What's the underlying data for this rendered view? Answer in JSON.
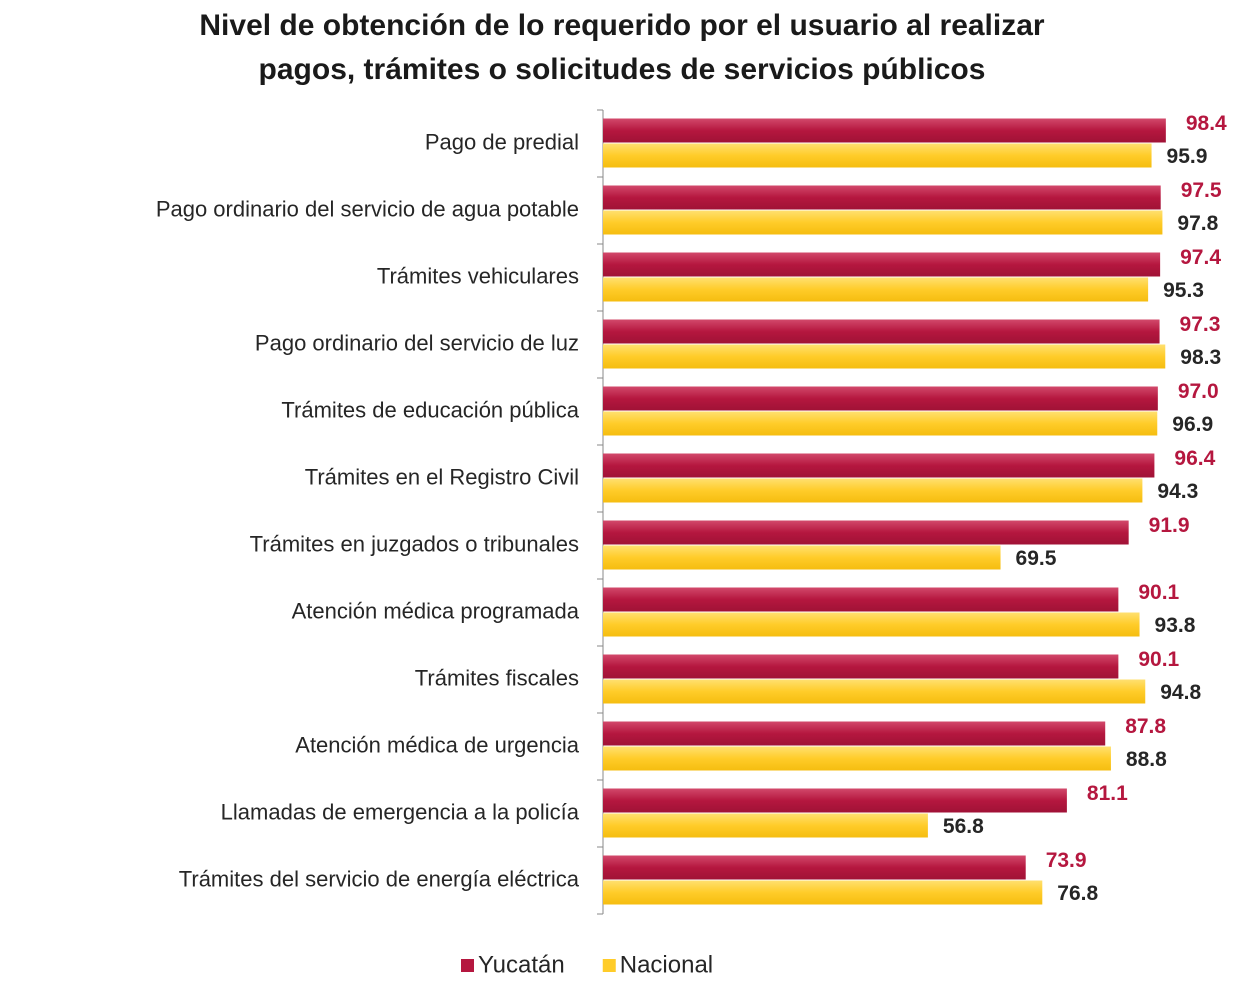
{
  "chart_data": {
    "type": "bar",
    "orientation": "horizontal",
    "title": "Nivel de obtención de lo requerido por el usuario al realizar pagos, trámites o solicitudes de servicios públicos",
    "categories": [
      "Pago de predial",
      "Pago ordinario del servicio de agua potable",
      "Trámites vehiculares",
      "Pago ordinario del servicio de luz",
      "Trámites de educación pública",
      "Trámites en el Registro Civil",
      "Trámites en juzgados o tribunales",
      "Atención médica programada",
      "Trámites fiscales",
      "Atención médica de urgencia",
      "Llamadas de emergencia a la policía",
      "Trámites del servicio de energía eléctrica"
    ],
    "series": [
      {
        "name": "Yucatán",
        "color": "#b5173f",
        "label_color": "#b5173f",
        "values": [
          98.4,
          97.5,
          97.4,
          97.3,
          97.0,
          96.4,
          91.9,
          90.1,
          90.1,
          87.8,
          81.1,
          73.9
        ],
        "value_labels": [
          "98.4",
          "97.5",
          "97.4",
          "97.3",
          "97.0",
          "96.4",
          "91.9",
          "90.1",
          "90.1",
          "87.8",
          "81.1",
          "73.9"
        ]
      },
      {
        "name": "Nacional",
        "color": "#ffcc29",
        "label_color": "#262626",
        "values": [
          95.9,
          97.8,
          95.3,
          98.3,
          96.9,
          94.3,
          69.5,
          93.8,
          94.8,
          88.8,
          56.8,
          76.8
        ],
        "value_labels": [
          "95.9",
          "97.8",
          "95.3",
          "98.3",
          "96.9",
          "94.3",
          "69.5",
          "93.8",
          "94.8",
          "88.8",
          "56.8",
          "76.8"
        ]
      }
    ],
    "xlim": [
      0,
      100
    ],
    "legend": "bottom"
  }
}
